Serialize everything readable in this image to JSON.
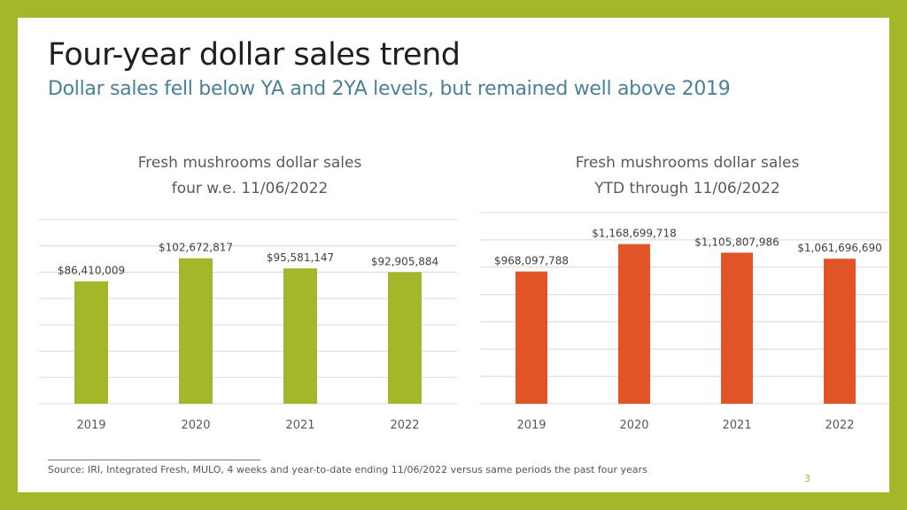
{
  "slide": {
    "title": "Four-year dollar sales trend",
    "subtitle": "Dollar sales fell below YA and 2YA levels, but remained well above 2019",
    "source": "Source: IRI, Integrated Fresh, MULO, 4 weeks and year-to-date ending 11/06/2022 versus same periods the past four years",
    "page_number": "3"
  },
  "colors": {
    "border": "#a4b62a",
    "left_bar": "#a4b62a",
    "right_bar": "#e05426",
    "subtitle": "#4b8197",
    "grid": "#d9d9d9"
  },
  "chart_data": [
    {
      "type": "bar",
      "title_line1": "Fresh mushrooms dollar sales",
      "title_line2": "four w.e. 11/06/2022",
      "categories": [
        "2019",
        "2020",
        "2021",
        "2022"
      ],
      "values": [
        86410009,
        102672817,
        95581147,
        92905884
      ],
      "labels": [
        "$86,410,009",
        "$102,672,817",
        "$95,581,147",
        "$92,905,884"
      ],
      "ylim": [
        0,
        130000000
      ],
      "grid": true,
      "color": "#a4b62a"
    },
    {
      "type": "bar",
      "title_line1": "Fresh mushrooms dollar sales",
      "title_line2": "YTD through 11/06/2022",
      "categories": [
        "2019",
        "2020",
        "2021",
        "2022"
      ],
      "values": [
        968097788,
        1168699718,
        1105807986,
        1061696690
      ],
      "labels": [
        "$968,097,788",
        "$1,168,699,718",
        "$1,105,807,986",
        "$1,061,696,690"
      ],
      "ylim": [
        0,
        1400000000
      ],
      "grid": true,
      "color": "#e05426"
    }
  ]
}
